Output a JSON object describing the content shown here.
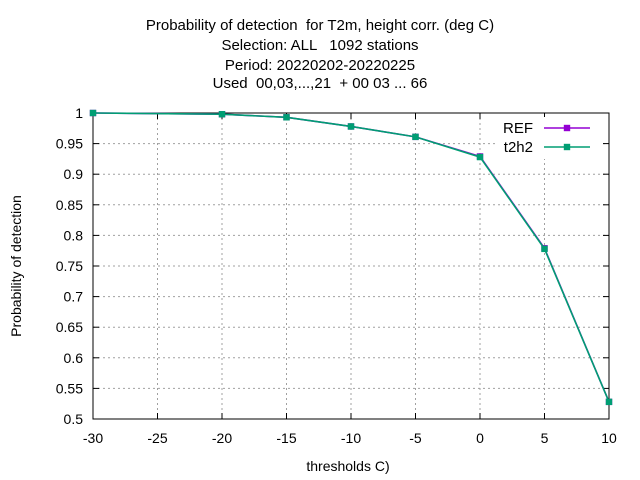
{
  "chart_data": {
    "type": "line",
    "title_lines": [
      "Probability of detection  for T2m, height corr. (deg C)",
      "Selection: ALL   1092 stations",
      "Period: 20220202-20220225",
      "Used  00,03,...,21  + 00 03 ... 66"
    ],
    "xlabel": "thresholds C)",
    "ylabel": "Probability of detection",
    "xlim": [
      -30,
      10
    ],
    "ylim": [
      0.5,
      1.0
    ],
    "x_ticks": [
      "-30",
      "-25",
      "-20",
      "-15",
      "-10",
      "-5",
      "0",
      "5",
      "10"
    ],
    "y_ticks": [
      "0.5",
      "0.55",
      "0.6",
      "0.65",
      "0.7",
      "0.75",
      "0.8",
      "0.85",
      "0.9",
      "0.95",
      "1"
    ],
    "grid": true,
    "legend_position": "top-right",
    "x": [
      -30,
      -20,
      -15,
      -10,
      -5,
      0,
      5,
      10
    ],
    "series": [
      {
        "name": "REF",
        "color": "#9400d3",
        "values": [
          1.0,
          0.998,
          0.993,
          0.978,
          0.961,
          0.929,
          0.779,
          0.528
        ]
      },
      {
        "name": "t2h2",
        "color": "#009e73",
        "values": [
          1.0,
          0.998,
          0.993,
          0.978,
          0.961,
          0.928,
          0.778,
          0.528
        ]
      }
    ]
  }
}
